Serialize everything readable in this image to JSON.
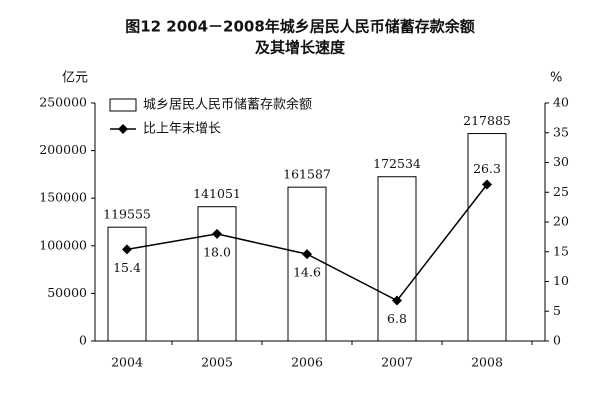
{
  "chart_data": {
    "type": "bar_line",
    "title": [
      "图12 2004－2008年城乡居民人民币储蓄存款余额",
      "及其增长速度"
    ],
    "ylabel": "亿元",
    "y2label": "%",
    "categories": [
      "2004",
      "2005",
      "2006",
      "2007",
      "2008"
    ],
    "series": [
      {
        "name": "城乡居民人民币储蓄存款余额",
        "type": "bar",
        "color": "#ffffff",
        "values": [
          119555,
          141051,
          161587,
          172534,
          217885
        ]
      },
      {
        "name": "比上年末增长",
        "type": "line",
        "axis": "y2",
        "color": "#000000",
        "values": [
          15.4,
          18.0,
          14.6,
          6.8,
          26.3
        ],
        "value_labels": [
          "15.4",
          "18.0",
          "14.6",
          "6.8",
          "26.3"
        ]
      }
    ],
    "ylim": [
      0,
      250000
    ],
    "yticks": [
      0,
      50000,
      100000,
      150000,
      200000,
      250000
    ],
    "y2lim": [
      0,
      40
    ],
    "y2ticks": [
      0,
      5,
      10,
      15,
      20,
      25,
      30,
      35,
      40
    ],
    "legend": "upper left"
  }
}
